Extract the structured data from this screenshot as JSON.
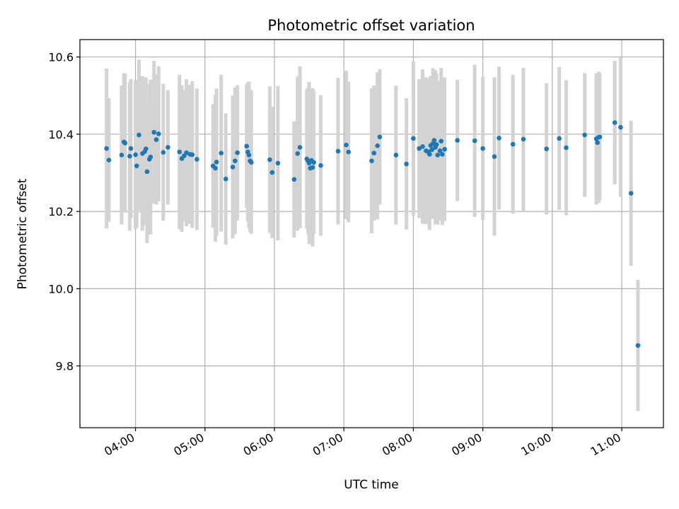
{
  "chart_data": {
    "type": "scatter",
    "title": "Photometric offset variation",
    "xlabel": "UTC time",
    "ylabel": "Photometric offset",
    "xlim": [
      "03:12",
      "11:36"
    ],
    "ylim": [
      9.64,
      10.645
    ],
    "xticks": [
      "04:00",
      "05:00",
      "06:00",
      "07:00",
      "08:00",
      "09:00",
      "10:00",
      "11:00"
    ],
    "yticks": [
      9.8,
      10.0,
      10.2,
      10.4,
      10.6
    ],
    "yticklabels": [
      "9.8",
      "10.0",
      "10.2",
      "10.4",
      "10.6"
    ],
    "grid": true,
    "colors": {
      "point": "#1f77b4",
      "errorbar": "#d3d3d3"
    },
    "series": [
      {
        "x": [
          "03:35",
          "03:37",
          "03:48",
          "03:50",
          "03:51",
          "03:55",
          "03:56",
          "04:00",
          "04:01",
          "04:03",
          "04:06",
          "04:08",
          "04:09",
          "04:10",
          "04:12",
          "04:13",
          "04:16",
          "04:18",
          "04:20",
          "04:24",
          "04:28",
          "04:38",
          "04:40",
          "04:42",
          "04:44",
          "04:47",
          "04:49",
          "04:53",
          "05:07",
          "05:09",
          "05:10",
          "05:14",
          "05:18",
          "05:24",
          "05:26",
          "05:28",
          "05:36",
          "05:37",
          "05:38",
          "05:39",
          "05:40",
          "05:56",
          "05:58",
          "06:03",
          "06:17",
          "06:20",
          "06:22",
          "06:28",
          "06:29",
          "06:30",
          "06:31",
          "06:32",
          "06:33",
          "06:34",
          "06:40",
          "06:55",
          "07:02",
          "07:04",
          "07:24",
          "07:26",
          "07:29",
          "07:31",
          "07:45",
          "07:54",
          "08:00",
          "08:05",
          "08:08",
          "08:11",
          "08:13",
          "08:14",
          "08:15",
          "08:16",
          "08:17",
          "08:18",
          "08:19",
          "08:20",
          "08:21",
          "08:23",
          "08:24",
          "08:25",
          "08:27",
          "08:38",
          "08:53",
          "09:00",
          "09:10",
          "09:14",
          "09:26",
          "09:35",
          "09:55",
          "10:06",
          "10:12",
          "10:28",
          "10:38",
          "10:39",
          "10:40",
          "10:41",
          "10:54",
          "10:59",
          "11:08",
          "11:14"
        ],
        "y": [
          10.363,
          10.333,
          10.346,
          10.38,
          10.377,
          10.343,
          10.363,
          10.347,
          10.318,
          10.398,
          10.35,
          10.355,
          10.362,
          10.303,
          10.335,
          10.341,
          10.405,
          10.386,
          10.401,
          10.353,
          10.366,
          10.354,
          10.337,
          10.344,
          10.352,
          10.348,
          10.347,
          10.335,
          10.318,
          10.312,
          10.328,
          10.351,
          10.284,
          10.315,
          10.331,
          10.352,
          10.369,
          10.354,
          10.346,
          10.331,
          10.327,
          10.334,
          10.301,
          10.325,
          10.283,
          10.35,
          10.366,
          10.336,
          10.331,
          10.325,
          10.312,
          10.332,
          10.314,
          10.327,
          10.319,
          10.356,
          10.372,
          10.354,
          10.331,
          10.351,
          10.37,
          10.393,
          10.346,
          10.323,
          10.389,
          10.363,
          10.368,
          10.357,
          10.354,
          10.348,
          10.371,
          10.36,
          10.376,
          10.384,
          10.366,
          10.373,
          10.346,
          10.357,
          10.382,
          10.348,
          10.361,
          10.384,
          10.383,
          10.363,
          10.342,
          10.39,
          10.374,
          10.387,
          10.362,
          10.389,
          10.365,
          10.398,
          10.388,
          10.378,
          10.392,
          10.393,
          10.43,
          10.418,
          10.247,
          9.853
        ],
        "yerr": [
          0.207,
          0.16,
          0.18,
          0.178,
          0.18,
          0.193,
          0.18,
          0.193,
          0.16,
          0.195,
          0.2,
          0.19,
          0.185,
          0.185,
          0.195,
          0.2,
          0.185,
          0.168,
          0.175,
          0.177,
          0.148,
          0.2,
          0.19,
          0.17,
          0.19,
          0.18,
          0.19,
          0.183,
          0.16,
          0.19,
          0.19,
          0.203,
          0.17,
          0.185,
          0.19,
          0.175,
          0.16,
          0.18,
          0.19,
          0.185,
          0.185,
          0.19,
          0.17,
          0.2,
          0.15,
          0.2,
          0.21,
          0.18,
          0.19,
          0.21,
          0.185,
          0.185,
          0.205,
          0.185,
          0.182,
          0.19,
          0.192,
          0.182,
          0.188,
          0.175,
          0.19,
          0.175,
          0.18,
          0.17,
          0.2,
          0.18,
          0.2,
          0.19,
          0.185,
          0.196,
          0.18,
          0.165,
          0.195,
          0.18,
          0.2,
          0.185,
          0.18,
          0.18,
          0.19,
          0.183,
          0.186,
          0.157,
          0.197,
          0.185,
          0.205,
          0.185,
          0.18,
          0.185,
          0.17,
          0.185,
          0.175,
          0.16,
          0.17,
          0.153,
          0.17,
          0.165,
          0.16,
          0.18,
          0.188,
          0.17
        ]
      }
    ]
  }
}
